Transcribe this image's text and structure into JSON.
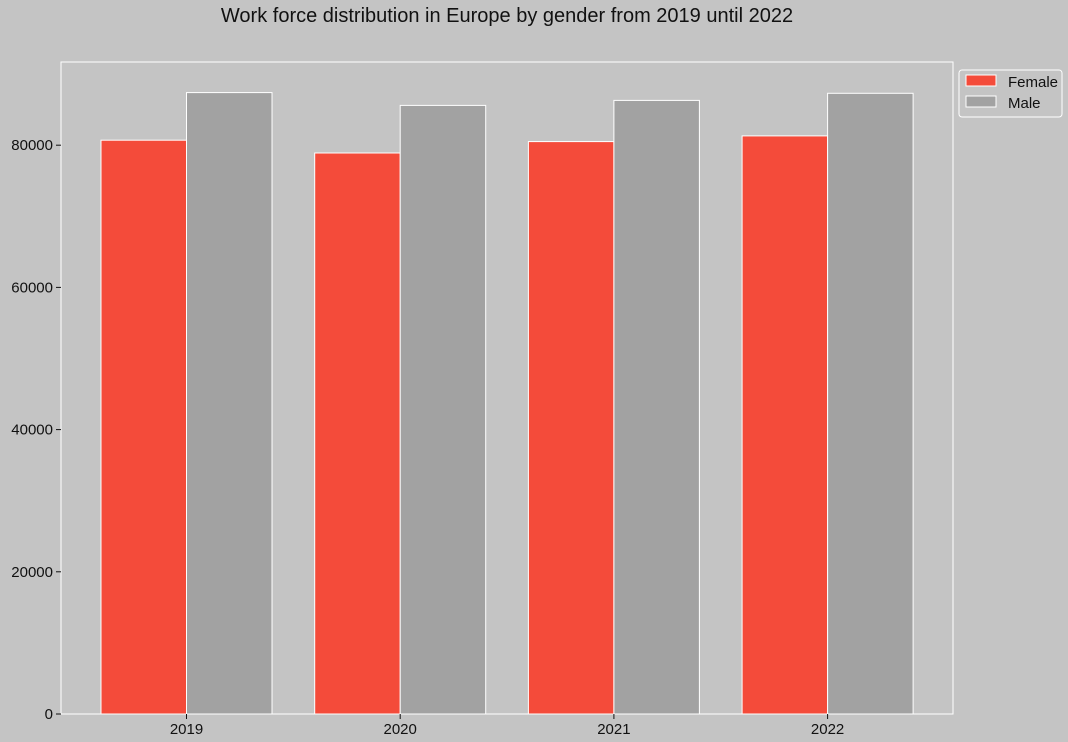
{
  "chart_data": {
    "type": "bar",
    "title": "Work force distribution in Europe by gender from 2019 until 2022",
    "xlabel": "",
    "ylabel": "",
    "categories": [
      "2019",
      "2020",
      "2021",
      "2022"
    ],
    "series": [
      {
        "name": "Female",
        "color": "#f44b3a",
        "values": [
          80700,
          78900,
          80500,
          81300
        ]
      },
      {
        "name": "Male",
        "color": "#a2a2a2",
        "values": [
          87400,
          85600,
          86300,
          87300
        ]
      }
    ],
    "y_ticks": [
      0,
      20000,
      40000,
      60000,
      80000
    ],
    "y_tick_labels": [
      "0",
      "20000",
      "40000",
      "60000",
      "80000"
    ],
    "ylim": [
      0,
      91700
    ],
    "grid": false,
    "legend_position": "outside top-right",
    "colors": {
      "background": "#c4c4c4",
      "plot_area": "#c4c4c4",
      "axes_edge": "#ffffff",
      "bar_edge": "#ffffff",
      "text": "#111111"
    }
  }
}
